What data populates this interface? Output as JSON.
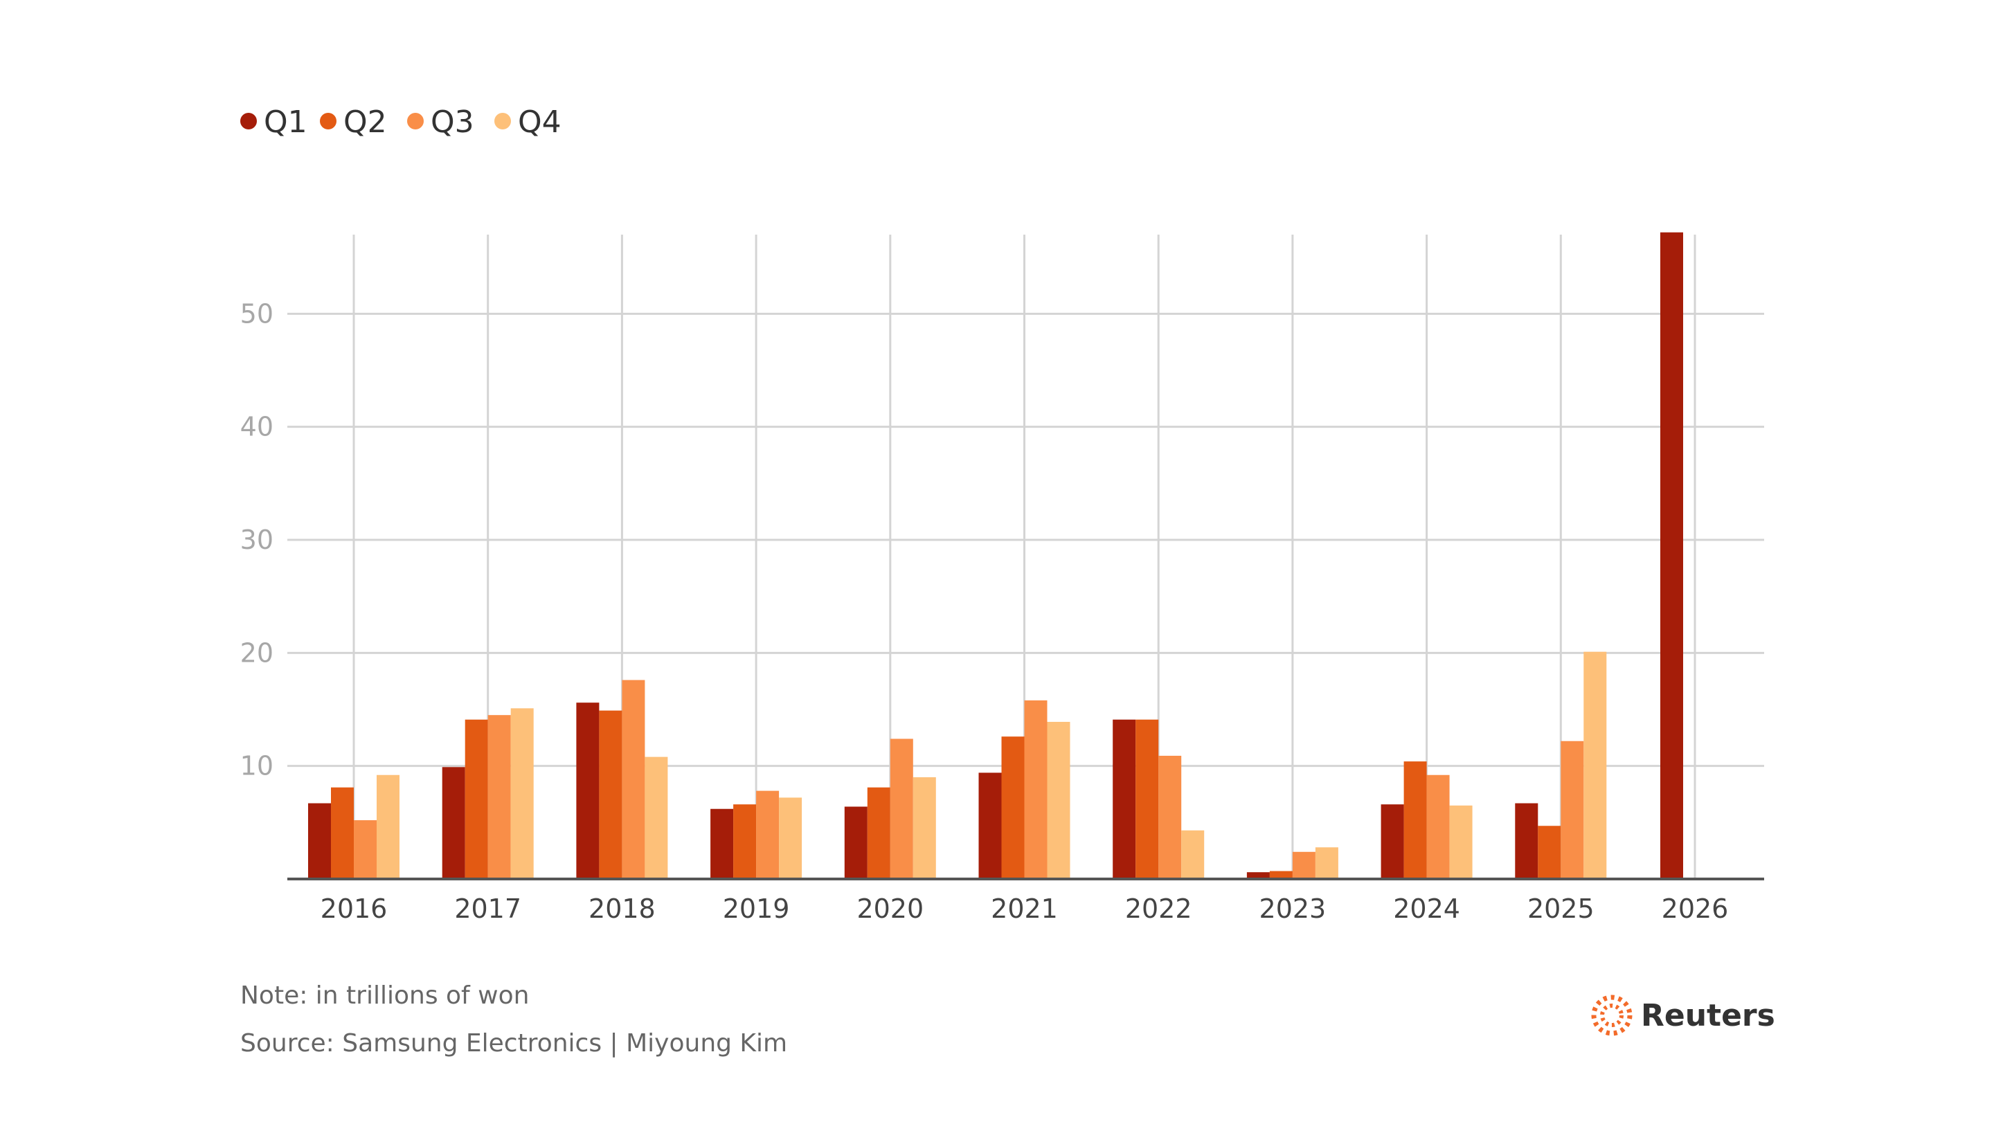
{
  "chart_data": {
    "type": "bar",
    "title": "",
    "xlabel": "",
    "ylabel": "",
    "ylim": [
      0,
      57
    ],
    "yticks": [
      10,
      20,
      30,
      40,
      50
    ],
    "grid": true,
    "legend_position": "top-left",
    "categories": [
      "2016",
      "2017",
      "2018",
      "2019",
      "2020",
      "2021",
      "2022",
      "2023",
      "2024",
      "2025",
      "2026"
    ],
    "series": [
      {
        "name": "Q1",
        "color": "#a51d09",
        "values": [
          6.7,
          9.9,
          15.6,
          6.2,
          6.4,
          9.4,
          14.1,
          0.6,
          6.6,
          6.7,
          57.2
        ]
      },
      {
        "name": "Q2",
        "color": "#e35a13",
        "values": [
          8.1,
          14.1,
          14.9,
          6.6,
          8.1,
          12.6,
          14.1,
          0.7,
          10.4,
          4.7,
          null
        ]
      },
      {
        "name": "Q3",
        "color": "#f98e48",
        "values": [
          5.2,
          14.5,
          17.6,
          7.8,
          12.4,
          15.8,
          10.9,
          2.4,
          9.2,
          12.2,
          null
        ]
      },
      {
        "name": "Q4",
        "color": "#fdc079",
        "values": [
          9.2,
          15.1,
          10.8,
          7.2,
          9.0,
          13.9,
          4.3,
          2.8,
          6.5,
          20.1,
          null
        ]
      }
    ],
    "note": "Note: in trillions of won",
    "source": "Source: Samsung Electronics | Miyoung Kim",
    "brand": "Reuters"
  }
}
